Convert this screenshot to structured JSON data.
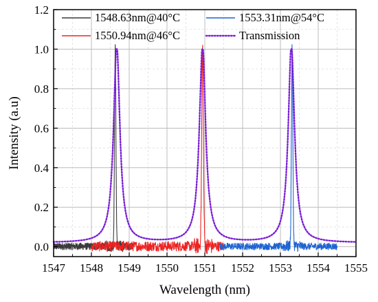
{
  "chart_data": {
    "type": "line",
    "title": "",
    "xlabel": "Wavelength (nm)",
    "ylabel": "Intensity (a.u)",
    "xlim": [
      1547,
      1555
    ],
    "ylim": [
      -0.05,
      1.2
    ],
    "xticks": [
      "1547",
      "1548",
      "1549",
      "1550",
      "1551",
      "1552",
      "1553",
      "1554",
      "1555"
    ],
    "yticks": [
      "0.0",
      "0.2",
      "0.4",
      "0.6",
      "0.8",
      "1.0",
      "1.2"
    ],
    "grid": true,
    "legend_placement": "top, two columns",
    "series": [
      {
        "name": "1548.63nm@40°C",
        "color": "#3a3a3a",
        "style": "solid",
        "x_range": [
          1547,
          1549.1
        ],
        "peak_x": 1548.63,
        "peak_y": 1.0,
        "fwhm_nm": 0.05,
        "noise_amplitude": 0.035,
        "points": [
          [
            1547.0,
            0.01
          ],
          [
            1548.0,
            0.01
          ],
          [
            1548.5,
            0.03
          ],
          [
            1548.6,
            0.6
          ],
          [
            1548.63,
            1.0
          ],
          [
            1548.66,
            0.6
          ],
          [
            1548.75,
            0.05
          ],
          [
            1549.1,
            0.01
          ]
        ]
      },
      {
        "name": "1550.94nm@46°C",
        "color": "#ee2222",
        "style": "solid",
        "x_range": [
          1548.0,
          1551.5
        ],
        "peak_x": 1550.94,
        "peak_y": 1.0,
        "fwhm_nm": 0.06,
        "noise_amplitude": 0.05,
        "points": [
          [
            1548.0,
            0.01
          ],
          [
            1550.0,
            0.01
          ],
          [
            1550.8,
            0.05
          ],
          [
            1550.9,
            0.6
          ],
          [
            1550.94,
            1.0
          ],
          [
            1550.98,
            0.6
          ],
          [
            1551.1,
            0.03
          ],
          [
            1551.5,
            0.0
          ]
        ]
      },
      {
        "name": "1553.31nm@54°C",
        "color": "#1e64d2",
        "style": "solid",
        "x_range": [
          1551.4,
          1554.5
        ],
        "peak_x": 1553.31,
        "peak_y": 1.0,
        "fwhm_nm": 0.05,
        "noise_amplitude": 0.035,
        "points": [
          [
            1551.4,
            0.01
          ],
          [
            1553.0,
            0.01
          ],
          [
            1553.2,
            0.08
          ],
          [
            1553.28,
            0.6
          ],
          [
            1553.31,
            1.0
          ],
          [
            1553.34,
            0.6
          ],
          [
            1553.45,
            0.04
          ],
          [
            1554.5,
            0.01
          ]
        ]
      },
      {
        "name": "Transmission",
        "color": "#7a1fd6",
        "style": "dotted",
        "lorentzian_peaks_x": [
          1548.67,
          1550.94,
          1553.29
        ],
        "lorentzian_hwhm_nm": 0.1,
        "baseline": 0.02,
        "points": [
          [
            1547.0,
            0.06
          ],
          [
            1547.8,
            0.11
          ],
          [
            1548.3,
            0.3
          ],
          [
            1548.67,
            1.0
          ],
          [
            1549.0,
            0.3
          ],
          [
            1549.8,
            0.08
          ],
          [
            1550.6,
            0.23
          ],
          [
            1550.94,
            1.0
          ],
          [
            1551.3,
            0.2
          ],
          [
            1552.1,
            0.07
          ],
          [
            1552.9,
            0.17
          ],
          [
            1553.29,
            1.0
          ],
          [
            1553.7,
            0.16
          ],
          [
            1554.4,
            0.08
          ],
          [
            1555.0,
            0.06
          ]
        ]
      }
    ]
  }
}
